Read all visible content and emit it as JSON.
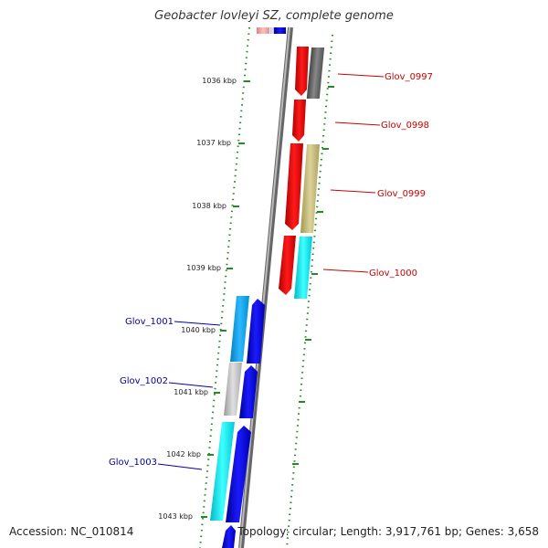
{
  "title": "Geobacter lovleyi SZ, complete genome",
  "accession_text": "Accession: NC_010814",
  "summary_text": "Topology: circular; Length: 3,917,761 bp; Genes: 3,658",
  "tick_labels": [
    "1036 kbp",
    "1037 kbp",
    "1038 kbp",
    "1039 kbp",
    "1040 kbp",
    "1041 kbp",
    "1042 kbp",
    "1043 kbp"
  ],
  "genes": [
    {
      "name": "Glov_0997",
      "strand": "forward"
    },
    {
      "name": "Glov_0998",
      "strand": "forward"
    },
    {
      "name": "Glov_0999",
      "strand": "forward"
    },
    {
      "name": "Glov_1000",
      "strand": "forward"
    },
    {
      "name": "Glov_1001",
      "strand": "reverse"
    },
    {
      "name": "Glov_1002",
      "strand": "reverse"
    },
    {
      "name": "Glov_1003",
      "strand": "reverse"
    }
  ],
  "colors": {
    "forward_gene": "#ff0000",
    "reverse_gene": "#0000ee",
    "forward_label": "#cc0000",
    "reverse_label": "#0000aa",
    "backbone": "#888888",
    "ticks": "#228b22",
    "cyan": "#00e5e5",
    "gray": "#bbbbbb",
    "olive": "#c8be78",
    "dark_gray": "#666666"
  }
}
